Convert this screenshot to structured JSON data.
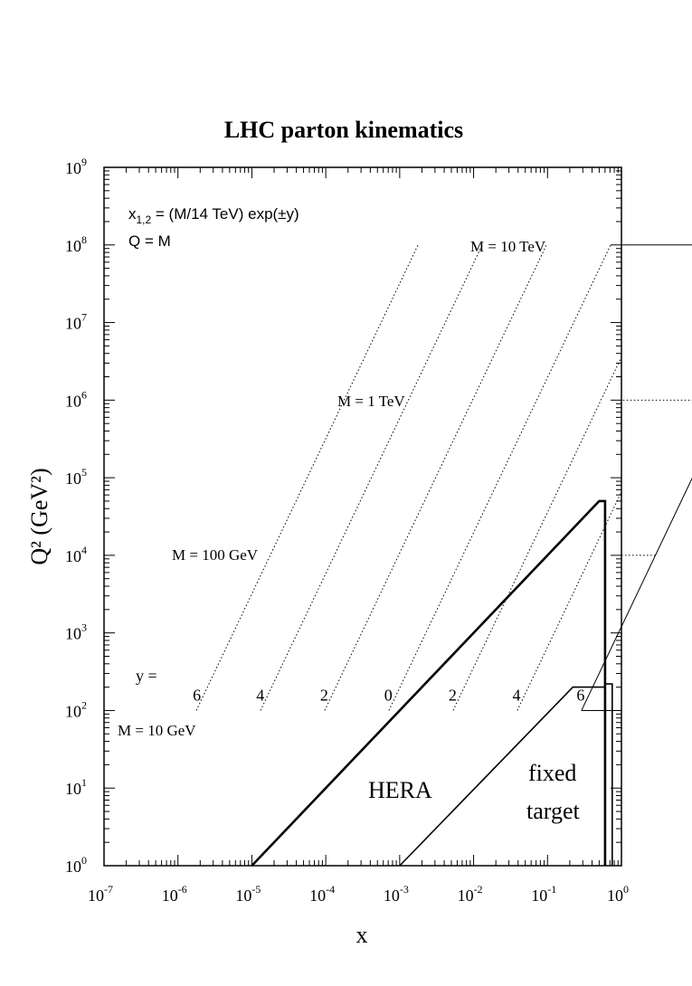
{
  "chart_data": {
    "type": "line",
    "title": "LHC parton kinematics",
    "xlabel": "x",
    "ylabel": "Q² (GeV²)",
    "x_scale": "log",
    "y_scale": "log",
    "xlim": [
      1e-07,
      1
    ],
    "ylim": [
      1,
      1000000000.0
    ],
    "x_ticks": [
      {
        "base": "10",
        "exp": "-7"
      },
      {
        "base": "10",
        "exp": "-6"
      },
      {
        "base": "10",
        "exp": "-5"
      },
      {
        "base": "10",
        "exp": "-4"
      },
      {
        "base": "10",
        "exp": "-3"
      },
      {
        "base": "10",
        "exp": "-2"
      },
      {
        "base": "10",
        "exp": "-1"
      },
      {
        "base": "10",
        "exp": "0"
      }
    ],
    "y_ticks": [
      {
        "base": "10",
        "exp": "0"
      },
      {
        "base": "10",
        "exp": "1"
      },
      {
        "base": "10",
        "exp": "2"
      },
      {
        "base": "10",
        "exp": "3"
      },
      {
        "base": "10",
        "exp": "4"
      },
      {
        "base": "10",
        "exp": "5"
      },
      {
        "base": "10",
        "exp": "6"
      },
      {
        "base": "10",
        "exp": "7"
      },
      {
        "base": "10",
        "exp": "8"
      },
      {
        "base": "10",
        "exp": "9"
      }
    ],
    "formula": {
      "line1_prefix": "x",
      "line1_sub": "1,2",
      "line1_rest": " = (M/14 TeV) exp(±y)",
      "line2": "Q = M"
    },
    "mass_lines": [
      {
        "label": "M = 10 GeV",
        "M_GeV": 10,
        "Q2": 100
      },
      {
        "label": "M = 100 GeV",
        "M_GeV": 100,
        "Q2": 10000
      },
      {
        "label": "M = 1 TeV",
        "M_GeV": 1000,
        "Q2": 1000000
      },
      {
        "label": "M = 10 TeV",
        "M_GeV": 10000,
        "Q2": 100000000
      }
    ],
    "rapidity_values": [
      6,
      4,
      2,
      0,
      -2,
      -4,
      -6
    ],
    "y_label": {
      "prefix": "y =",
      "values": [
        {
          "text": "6",
          "x": 1.8e-06,
          "Q2": 135
        },
        {
          "text": "4",
          "x": 1.3e-05,
          "Q2": 135
        },
        {
          "text": "2",
          "x": 9.5e-05,
          "Q2": 135
        },
        {
          "text": "0",
          "x": 0.0007,
          "Q2": 135
        },
        {
          "text": "2",
          "x": 0.0052,
          "Q2": 135
        },
        {
          "text": "4",
          "x": 0.038,
          "Q2": 135
        },
        {
          "text": "6",
          "x": 0.28,
          "Q2": 135
        }
      ]
    },
    "regions": [
      {
        "name": "HERA",
        "label": "HERA",
        "boundary": [
          [
            1e-05,
            1
          ],
          [
            0.5,
            50000
          ],
          [
            0.6,
            50000
          ],
          [
            0.6,
            1
          ]
        ]
      },
      {
        "name": "fixed target",
        "label_line1": "fixed",
        "label_line2": "target",
        "boundary": [
          [
            0.001,
            1
          ],
          [
            0.22,
            200
          ],
          [
            0.6,
            200
          ],
          [
            0.6,
            220
          ],
          [
            0.75,
            220
          ],
          [
            0.75,
            1
          ]
        ]
      }
    ],
    "grid": false,
    "legend": "none"
  }
}
